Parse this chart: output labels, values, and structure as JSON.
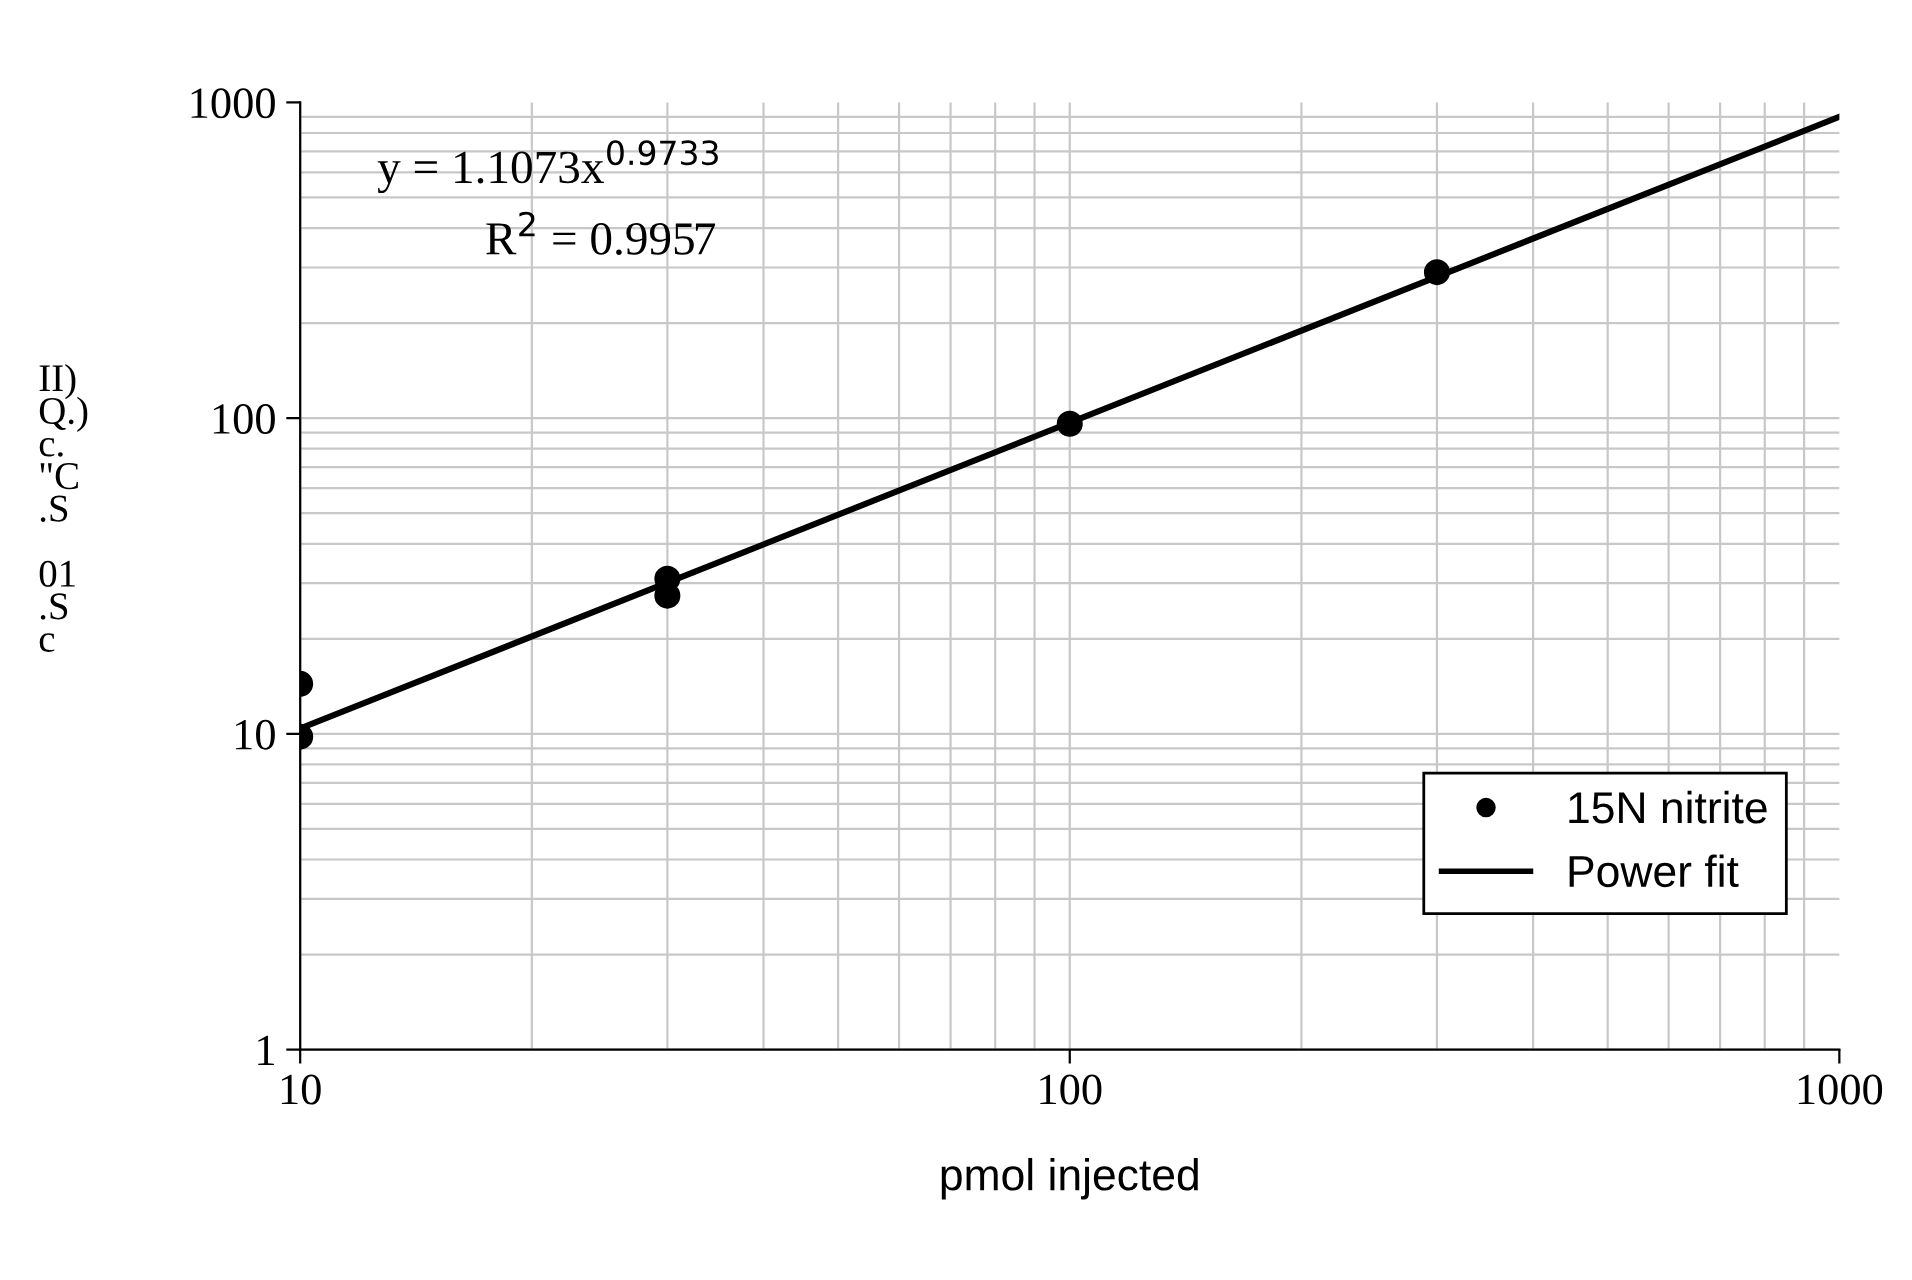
{
  "chart_data": {
    "type": "scatter",
    "log": "xy",
    "xlabel": "pmol injected",
    "ylabel": "II)\nQ.)\nc.\n\"C\n.S\n\n01\n.S\nc",
    "xlim": [
      10,
      1000
    ],
    "ylim": [
      1,
      1000
    ],
    "xticks": [
      10,
      100,
      1000
    ],
    "yticks": [
      1,
      10,
      100,
      1000
    ],
    "grid": true,
    "legend": "bottom right",
    "marker": "circle",
    "annotations": [
      "y = 1.1073x$^{0.9733}$",
      "R$^{2}$ = 0.9957"
    ],
    "series": [
      {
        "name": "15N nitrite",
        "color": "#000000",
        "x": [
          10,
          10,
          30,
          30,
          100,
          300
        ],
        "values": [
          14.4,
          9.8,
          31,
          27.4,
          96,
          290
        ]
      },
      {
        "name": "Power fit",
        "type": "line",
        "marker": "none",
        "color": "#000000",
        "x": [
          10,
          1000
        ],
        "values": [
          10.4,
          900
        ]
      }
    ]
  }
}
